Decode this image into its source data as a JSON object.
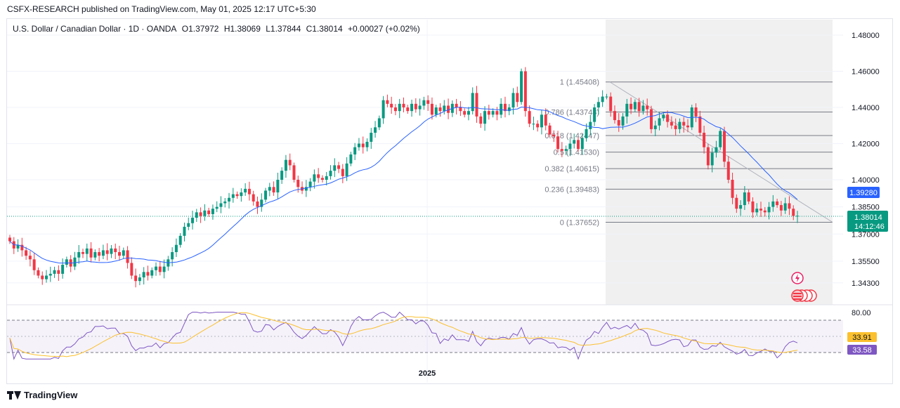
{
  "header": {
    "published": "CSFX-RESEARCH published on TradingView.com, May 01, 2025 12:17 UTC+5:30"
  },
  "legend": {
    "symbol": "U.S. Dollar / Canadian Dollar · 1D · OANDA",
    "open": "O1.37972",
    "high": "H1.38069",
    "low": "L1.37844",
    "close": "C1.38014",
    "change": "+0.00027 (+0.02%)"
  },
  "footer": {
    "brand": "TradingView"
  },
  "colors": {
    "up": "#089981",
    "down": "#f23645",
    "ma": "#2962ff",
    "rsi": "#7e57c2",
    "rsi_ma": "#fbc02d",
    "fib": "#787b86",
    "price_tag": "#089981",
    "ma_tag": "#2962ff"
  },
  "chart_data": {
    "type": "candlestick",
    "y_axis_ticks": [
      "1.48000",
      "1.46000",
      "1.44000",
      "1.42000",
      "1.40000",
      "1.38500",
      "1.37000",
      "1.35500",
      "1.34300"
    ],
    "x_axis_ticks": [
      "2025"
    ],
    "ylim": [
      1.337,
      1.48
    ],
    "current_price": "1.38014",
    "countdown": "14:12:46",
    "ma_value": "1.39280",
    "fib_levels": [
      {
        "label": "1 (1.45408)",
        "value": 1.45408
      },
      {
        "label": "0.786 (1.43748)",
        "value": 1.43748
      },
      {
        "label": "0.618 (1.42447)",
        "value": 1.42447
      },
      {
        "label": "0.5 (1.41530)",
        "value": 1.4153
      },
      {
        "label": "0.382 (1.40615)",
        "value": 1.40615
      },
      {
        "label": "0.236 (1.39483)",
        "value": 1.39483
      },
      {
        "label": "0 (1.37652)",
        "value": 1.37652
      }
    ],
    "rsi": {
      "ticks": [
        "80.00"
      ],
      "rsi_value": "33.91",
      "rsi_ma_value": "33.58",
      "upper": 70,
      "lower": 30
    },
    "close_series": [
      1.366,
      1.362,
      1.364,
      1.361,
      1.358,
      1.356,
      1.35,
      1.347,
      1.345,
      1.347,
      1.348,
      1.35,
      1.348,
      1.353,
      1.356,
      1.352,
      1.357,
      1.36,
      1.359,
      1.362,
      1.357,
      1.36,
      1.358,
      1.361,
      1.359,
      1.362,
      1.36,
      1.358,
      1.361,
      1.354,
      1.347,
      1.344,
      1.346,
      1.349,
      1.347,
      1.35,
      1.352,
      1.349,
      1.352,
      1.356,
      1.36,
      1.364,
      1.369,
      1.374,
      1.376,
      1.379,
      1.382,
      1.38,
      1.383,
      1.381,
      1.384,
      1.385,
      1.387,
      1.388,
      1.39,
      1.392,
      1.391,
      1.393,
      1.395,
      1.392,
      1.388,
      1.385,
      1.389,
      1.394,
      1.396,
      1.393,
      1.4,
      1.405,
      1.411,
      1.408,
      1.4,
      1.396,
      1.394,
      1.396,
      1.399,
      1.403,
      1.401,
      1.4,
      1.402,
      1.405,
      1.408,
      1.406,
      1.402,
      1.409,
      1.414,
      1.418,
      1.42,
      1.418,
      1.421,
      1.426,
      1.429,
      1.434,
      1.444,
      1.442,
      1.44,
      1.438,
      1.442,
      1.44,
      1.438,
      1.442,
      1.439,
      1.441,
      1.444,
      1.442,
      1.436,
      1.44,
      1.438,
      1.441,
      1.437,
      1.442,
      1.44,
      1.438,
      1.436,
      1.438,
      1.448,
      1.435,
      1.431,
      1.438,
      1.436,
      1.438,
      1.436,
      1.442,
      1.438,
      1.44,
      1.448,
      1.443,
      1.46,
      1.438,
      1.431,
      1.431,
      1.429,
      1.436,
      1.43,
      1.425,
      1.424,
      1.417,
      1.416,
      1.417,
      1.42,
      1.422,
      1.417,
      1.423,
      1.428,
      1.432,
      1.44,
      1.443,
      1.446,
      1.446,
      1.438,
      1.433,
      1.43,
      1.435,
      1.442,
      1.439,
      1.443,
      1.438,
      1.441,
      1.439,
      1.428,
      1.43,
      1.434,
      1.436,
      1.432,
      1.43,
      1.428,
      1.432,
      1.43,
      1.429,
      1.44,
      1.435,
      1.426,
      1.418,
      1.408,
      1.415,
      1.418,
      1.427,
      1.41,
      1.4,
      1.39,
      1.384,
      1.386,
      1.393,
      1.388,
      1.382,
      1.384,
      1.383,
      1.382,
      1.385,
      1.388,
      1.386,
      1.383,
      1.387,
      1.384,
      1.38,
      1.3801
    ]
  }
}
